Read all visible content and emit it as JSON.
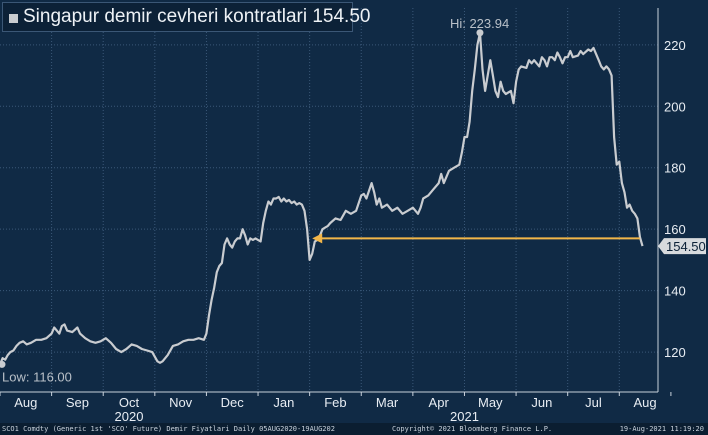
{
  "legend": {
    "label": "Singapur demir cevheri kontratlari 154.50"
  },
  "footer": {
    "left": "SCO1 Comdty (Generic 1st 'SCO' Future) Demir Fiyatlari  Daily 05AUG2020-19AUG202",
    "center": "Copyright© 2021 Bloomberg Finance L.P.",
    "right": "19-Aug-2021 11:19:20"
  },
  "colors": {
    "background": "#102a45",
    "line": "#c9ccd0",
    "arrow": "#f2b649",
    "grid": "#3a5878",
    "text": "#e8edf3"
  },
  "chart_data": {
    "type": "line",
    "ylim": [
      107,
      232
    ],
    "yticks": [
      120,
      140,
      160,
      180,
      200,
      220
    ],
    "xticks": [
      {
        "label": "Aug",
        "t": 0.5
      },
      {
        "label": "Sep",
        "t": 1.5
      },
      {
        "label": "Oct",
        "t": 2.5
      },
      {
        "label": "Nov",
        "t": 3.5
      },
      {
        "label": "Dec",
        "t": 4.5
      },
      {
        "label": "Jan",
        "t": 5.5
      },
      {
        "label": "Feb",
        "t": 6.5
      },
      {
        "label": "Mar",
        "t": 7.5
      },
      {
        "label": "Apr",
        "t": 8.5
      },
      {
        "label": "May",
        "t": 9.5
      },
      {
        "label": "Jun",
        "t": 10.5
      },
      {
        "label": "Jul",
        "t": 11.5
      },
      {
        "label": "Aug",
        "t": 12.5
      }
    ],
    "year_labels": [
      {
        "label": "2020",
        "t": 2.5
      },
      {
        "label": "2021",
        "t": 9.0
      }
    ],
    "series": [
      {
        "points": [
          [
            0.0,
            116.0
          ],
          [
            0.05,
            118.0
          ],
          [
            0.1,
            117.5
          ],
          [
            0.15,
            119.0
          ],
          [
            0.2,
            120.0
          ],
          [
            0.26,
            120.5
          ],
          [
            0.32,
            122.0
          ],
          [
            0.38,
            123.0
          ],
          [
            0.45,
            123.5
          ],
          [
            0.52,
            122.5
          ],
          [
            0.6,
            123.0
          ],
          [
            0.7,
            124.0
          ],
          [
            0.8,
            124.0
          ],
          [
            0.9,
            124.5
          ],
          [
            1.0,
            126.0
          ],
          [
            1.05,
            128.0
          ],
          [
            1.1,
            127.0
          ],
          [
            1.15,
            126.0
          ],
          [
            1.2,
            128.5
          ],
          [
            1.25,
            129.0
          ],
          [
            1.3,
            127.0
          ],
          [
            1.4,
            126.5
          ],
          [
            1.5,
            128.0
          ],
          [
            1.55,
            126.0
          ],
          [
            1.65,
            124.5
          ],
          [
            1.75,
            123.5
          ],
          [
            1.85,
            123.0
          ],
          [
            1.95,
            123.5
          ],
          [
            2.05,
            124.5
          ],
          [
            2.15,
            123.0
          ],
          [
            2.25,
            121.0
          ],
          [
            2.35,
            120.0
          ],
          [
            2.45,
            121.0
          ],
          [
            2.55,
            122.5
          ],
          [
            2.65,
            122.0
          ],
          [
            2.75,
            121.0
          ],
          [
            2.85,
            120.5
          ],
          [
            2.95,
            120.0
          ],
          [
            3.0,
            118.5
          ],
          [
            3.05,
            117.0
          ],
          [
            3.1,
            116.5
          ],
          [
            3.15,
            117.0
          ],
          [
            3.25,
            119.0
          ],
          [
            3.35,
            122.0
          ],
          [
            3.45,
            122.5
          ],
          [
            3.55,
            123.5
          ],
          [
            3.65,
            124.0
          ],
          [
            3.75,
            124.0
          ],
          [
            3.85,
            124.5
          ],
          [
            3.95,
            124.0
          ],
          [
            4.0,
            126.0
          ],
          [
            4.05,
            132.0
          ],
          [
            4.1,
            137.0
          ],
          [
            4.15,
            141.0
          ],
          [
            4.2,
            146.0
          ],
          [
            4.25,
            148.0
          ],
          [
            4.3,
            149.0
          ],
          [
            4.35,
            155.0
          ],
          [
            4.4,
            157.0
          ],
          [
            4.45,
            155.0
          ],
          [
            4.5,
            154.0
          ],
          [
            4.55,
            156.0
          ],
          [
            4.6,
            157.0
          ],
          [
            4.65,
            157.0
          ],
          [
            4.7,
            160.0
          ],
          [
            4.75,
            158.0
          ],
          [
            4.8,
            155.0
          ],
          [
            4.85,
            157.0
          ],
          [
            4.9,
            156.5
          ],
          [
            4.95,
            157.0
          ],
          [
            5.0,
            156.5
          ],
          [
            5.05,
            156.0
          ],
          [
            5.1,
            162.0
          ],
          [
            5.15,
            166.0
          ],
          [
            5.2,
            169.0
          ],
          [
            5.25,
            168.0
          ],
          [
            5.3,
            170.0
          ],
          [
            5.35,
            170.0
          ],
          [
            5.4,
            170.5
          ],
          [
            5.45,
            169.0
          ],
          [
            5.5,
            170.0
          ],
          [
            5.55,
            169.0
          ],
          [
            5.6,
            169.5
          ],
          [
            5.65,
            168.5
          ],
          [
            5.7,
            169.0
          ],
          [
            5.75,
            168.0
          ],
          [
            5.8,
            168.5
          ],
          [
            5.85,
            168.0
          ],
          [
            5.9,
            166.0
          ],
          [
            5.95,
            160.0
          ],
          [
            6.0,
            150.0
          ],
          [
            6.05,
            152.0
          ],
          [
            6.1,
            156.0
          ],
          [
            6.15,
            156.5
          ],
          [
            6.2,
            158.0
          ],
          [
            6.25,
            160.0
          ],
          [
            6.3,
            160.5
          ],
          [
            6.35,
            161.0
          ],
          [
            6.4,
            162.0
          ],
          [
            6.5,
            163.5
          ],
          [
            6.6,
            163.0
          ],
          [
            6.7,
            166.0
          ],
          [
            6.8,
            165.0
          ],
          [
            6.9,
            166.0
          ],
          [
            7.0,
            171.0
          ],
          [
            7.05,
            171.5
          ],
          [
            7.1,
            170.0
          ],
          [
            7.2,
            175.0
          ],
          [
            7.25,
            172.0
          ],
          [
            7.3,
            168.0
          ],
          [
            7.35,
            170.0
          ],
          [
            7.4,
            167.0
          ],
          [
            7.5,
            168.0
          ],
          [
            7.6,
            166.0
          ],
          [
            7.7,
            167.0
          ],
          [
            7.8,
            165.0
          ],
          [
            7.9,
            166.0
          ],
          [
            8.0,
            167.0
          ],
          [
            8.1,
            165.0
          ],
          [
            8.15,
            167.0
          ],
          [
            8.2,
            170.0
          ],
          [
            8.3,
            171.0
          ],
          [
            8.4,
            173.0
          ],
          [
            8.5,
            175.0
          ],
          [
            8.55,
            178.0
          ],
          [
            8.6,
            175.0
          ],
          [
            8.7,
            179.0
          ],
          [
            8.8,
            180.0
          ],
          [
            8.9,
            181.0
          ],
          [
            8.95,
            185.0
          ],
          [
            9.0,
            190.0
          ],
          [
            9.05,
            190.0
          ],
          [
            9.1,
            195.0
          ],
          [
            9.15,
            205.0
          ],
          [
            9.2,
            212.0
          ],
          [
            9.25,
            220.0
          ],
          [
            9.3,
            223.9
          ],
          [
            9.35,
            212.0
          ],
          [
            9.4,
            205.0
          ],
          [
            9.45,
            210.0
          ],
          [
            9.5,
            215.0
          ],
          [
            9.55,
            210.0
          ],
          [
            9.6,
            205.0
          ],
          [
            9.65,
            203.0
          ],
          [
            9.7,
            208.0
          ],
          [
            9.75,
            205.0
          ],
          [
            9.8,
            204.0
          ],
          [
            9.9,
            205.0
          ],
          [
            9.95,
            201.0
          ],
          [
            10.0,
            208.0
          ],
          [
            10.05,
            212.0
          ],
          [
            10.1,
            213.0
          ],
          [
            10.2,
            212.5
          ],
          [
            10.25,
            215.0
          ],
          [
            10.3,
            214.0
          ],
          [
            10.35,
            215.0
          ],
          [
            10.4,
            214.0
          ],
          [
            10.45,
            213.0
          ],
          [
            10.5,
            216.0
          ],
          [
            10.55,
            215.0
          ],
          [
            10.6,
            213.0
          ],
          [
            10.65,
            216.0
          ],
          [
            10.7,
            216.0
          ],
          [
            10.75,
            215.0
          ],
          [
            10.8,
            217.5
          ],
          [
            10.85,
            216.0
          ],
          [
            10.9,
            214.0
          ],
          [
            10.95,
            216.0
          ],
          [
            11.0,
            216.0
          ],
          [
            11.05,
            218.0
          ],
          [
            11.1,
            216.0
          ],
          [
            11.2,
            216.5
          ],
          [
            11.25,
            218.0
          ],
          [
            11.3,
            217.0
          ],
          [
            11.4,
            218.5
          ],
          [
            11.45,
            218.0
          ],
          [
            11.5,
            219.0
          ],
          [
            11.55,
            217.0
          ],
          [
            11.6,
            215.0
          ],
          [
            11.65,
            213.0
          ],
          [
            11.7,
            212.0
          ],
          [
            11.75,
            213.0
          ],
          [
            11.8,
            212.0
          ],
          [
            11.85,
            210.0
          ],
          [
            11.9,
            190.0
          ],
          [
            11.95,
            181.0
          ],
          [
            12.0,
            182.0
          ],
          [
            12.05,
            175.0
          ],
          [
            12.1,
            172.0
          ],
          [
            12.15,
            167.0
          ],
          [
            12.2,
            168.0
          ],
          [
            12.25,
            166.0
          ],
          [
            12.3,
            165.0
          ],
          [
            12.35,
            163.5
          ],
          [
            12.4,
            157.5
          ],
          [
            12.45,
            154.5
          ]
        ]
      }
    ],
    "annotations": {
      "high": {
        "label": "Hi: 223.94",
        "value": 223.94,
        "t": 9.3
      },
      "low": {
        "label": "Low: 116.00",
        "value": 116.0,
        "t": 0.0
      },
      "last": {
        "label": "154.50",
        "value": 154.5
      },
      "arrow": {
        "from_t": 12.4,
        "to_t": 6.05,
        "value": 157.0
      }
    }
  }
}
